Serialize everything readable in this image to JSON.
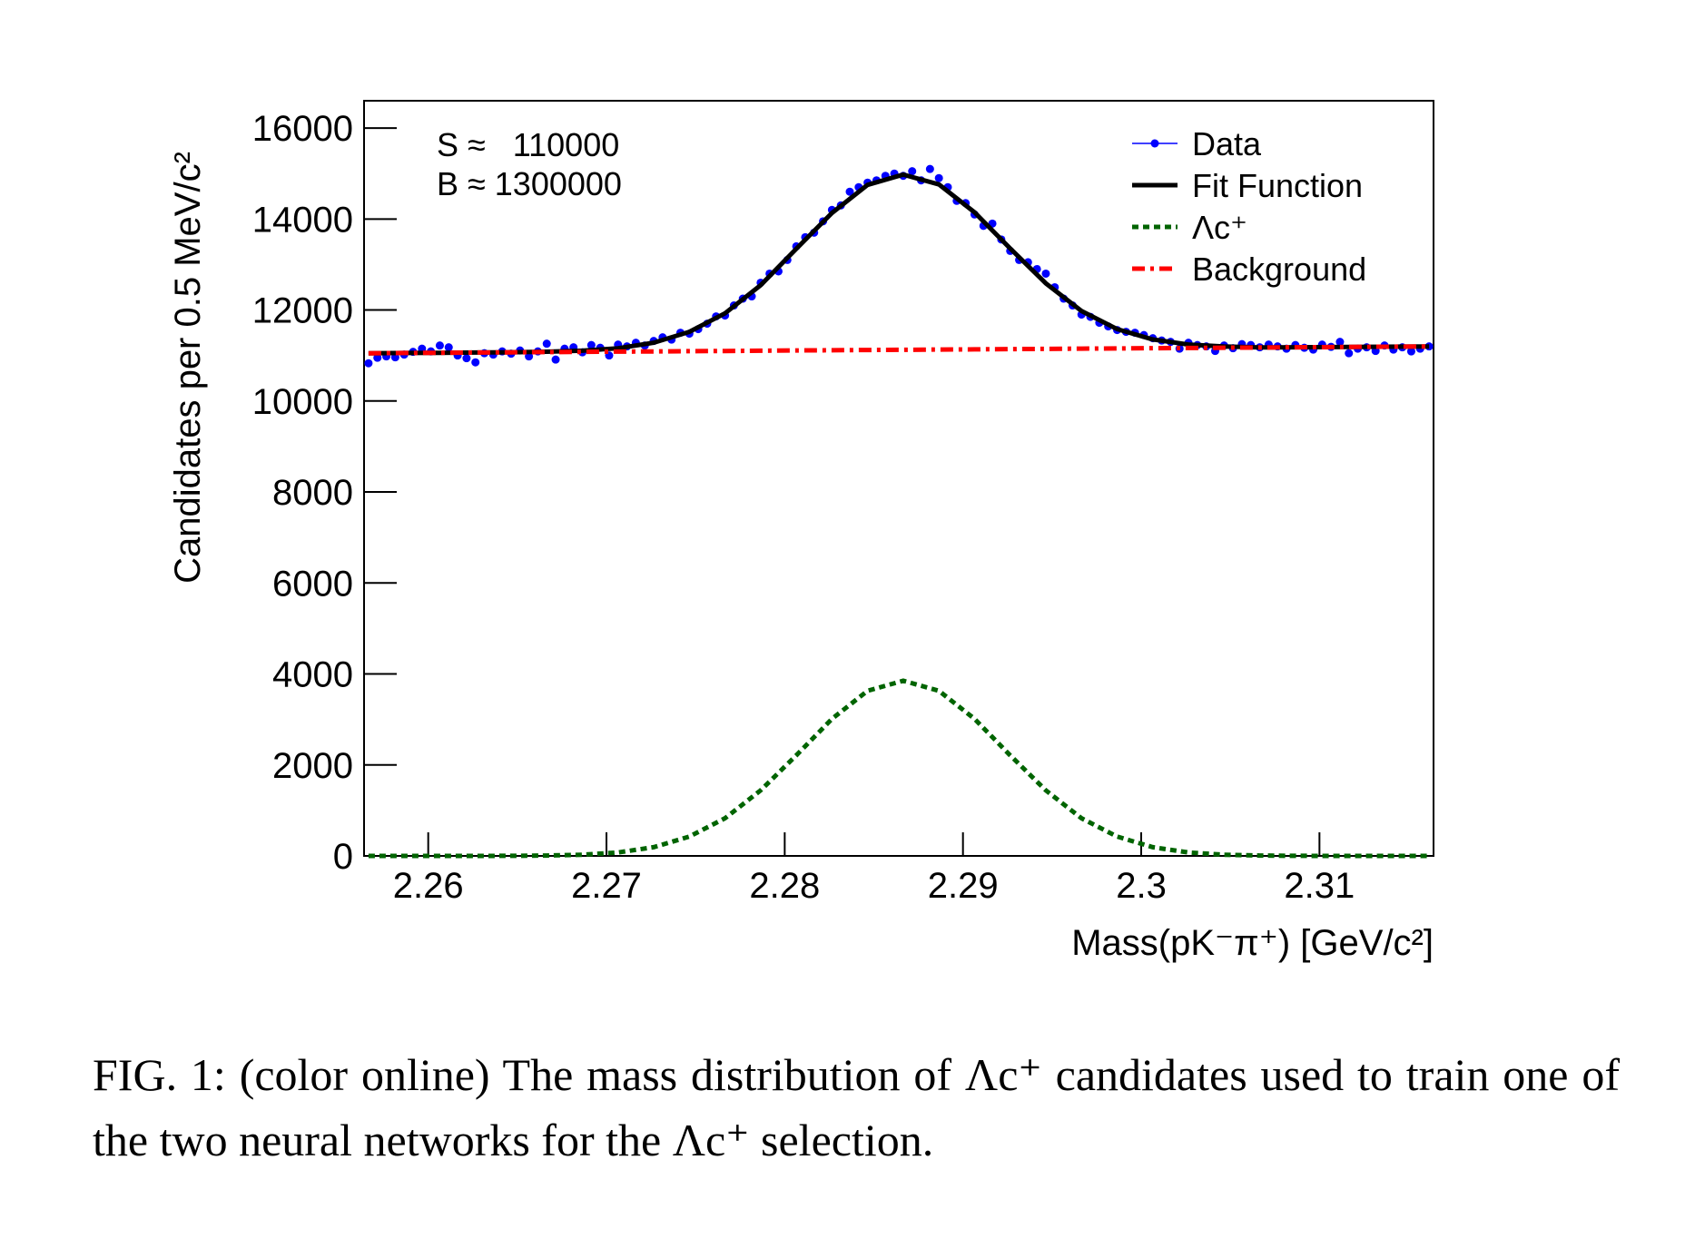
{
  "chart_data": {
    "type": "line",
    "xlabel": "Mass(pK⁻π⁺) [GeV/c²]",
    "ylabel": "Candidates per 0.5 MeV/c²",
    "annotations": [
      "S ≈   110000",
      "B ≈ 1300000"
    ],
    "caption": "FIG. 1: (color online) The mass distribution of Λc⁺ candidates used to train one of the two neural networks for the Λc⁺ selection.",
    "xlim": [
      2.2564,
      2.3164
    ],
    "ylim": [
      0,
      16600
    ],
    "xticks": [
      2.26,
      2.27,
      2.28,
      2.29,
      2.3,
      2.31
    ],
    "yticks": [
      0,
      2000,
      4000,
      6000,
      8000,
      10000,
      12000,
      14000,
      16000
    ],
    "legend": "top-right",
    "series": [
      {
        "name": "Data",
        "color": "#0000ff",
        "style": "markers",
        "x": [
          2.25665,
          2.25715,
          2.25765,
          2.25815,
          2.25865,
          2.25915,
          2.25965,
          2.26015,
          2.26065,
          2.26115,
          2.26165,
          2.26215,
          2.26265,
          2.26315,
          2.26365,
          2.26415,
          2.26465,
          2.26515,
          2.26565,
          2.26615,
          2.26665,
          2.26715,
          2.26765,
          2.26815,
          2.26865,
          2.26915,
          2.26965,
          2.27015,
          2.27065,
          2.27115,
          2.27165,
          2.27215,
          2.27265,
          2.27315,
          2.27365,
          2.27415,
          2.27465,
          2.27515,
          2.27565,
          2.27615,
          2.27665,
          2.27715,
          2.27765,
          2.27815,
          2.27865,
          2.27915,
          2.27965,
          2.28015,
          2.28065,
          2.28115,
          2.28165,
          2.28215,
          2.28265,
          2.28315,
          2.28365,
          2.28415,
          2.28465,
          2.28515,
          2.28565,
          2.28615,
          2.28665,
          2.28715,
          2.28765,
          2.28815,
          2.28865,
          2.28915,
          2.28965,
          2.29015,
          2.29065,
          2.29115,
          2.29165,
          2.29215,
          2.29265,
          2.29315,
          2.29365,
          2.29415,
          2.29465,
          2.29515,
          2.29565,
          2.29615,
          2.29665,
          2.29715,
          2.29765,
          2.29815,
          2.29865,
          2.29915,
          2.29965,
          2.30015,
          2.30065,
          2.30115,
          2.30165,
          2.30215,
          2.30265,
          2.30315,
          2.30365,
          2.30415,
          2.30465,
          2.30515,
          2.30565,
          2.30615,
          2.30665,
          2.30715,
          2.30765,
          2.30815,
          2.30865,
          2.30915,
          2.30965,
          2.31015,
          2.31065,
          2.31115,
          2.31165,
          2.31215,
          2.31265,
          2.31315,
          2.31365,
          2.31415,
          2.31465,
          2.31515,
          2.31565,
          2.31615
        ],
        "values": [
          10830,
          10950,
          10980,
          10960,
          11020,
          11080,
          11150,
          11090,
          11220,
          11180,
          11000,
          10940,
          10850,
          11050,
          11020,
          11090,
          11040,
          11110,
          10980,
          11090,
          11260,
          10910,
          11150,
          11180,
          11070,
          11230,
          11170,
          11000,
          11240,
          11200,
          11280,
          11220,
          11320,
          11400,
          11350,
          11500,
          11480,
          11580,
          11700,
          11860,
          11880,
          12100,
          12250,
          12300,
          12600,
          12800,
          12850,
          13100,
          13400,
          13600,
          13700,
          13950,
          14200,
          14300,
          14600,
          14700,
          14800,
          14850,
          14950,
          15000,
          14950,
          15050,
          14850,
          15100,
          14900,
          14700,
          14400,
          14350,
          14100,
          13850,
          13900,
          13550,
          13300,
          13100,
          13050,
          12900,
          12800,
          12500,
          12250,
          12100,
          11900,
          11850,
          11720,
          11640,
          11560,
          11520,
          11500,
          11450,
          11380,
          11330,
          11300,
          11150,
          11280,
          11230,
          11200,
          11100,
          11220,
          11160,
          11250,
          11230,
          11180,
          11240,
          11200,
          11150,
          11230,
          11170,
          11130,
          11240,
          11190,
          11300,
          11050,
          11150,
          11180,
          11100,
          11220,
          11130,
          11180,
          11090,
          11150,
          11200
        ]
      },
      {
        "name": "Fit Function",
        "color": "#000000",
        "style": "solid",
        "x": [
          2.25665,
          2.25865,
          2.26065,
          2.26265,
          2.26465,
          2.26665,
          2.26865,
          2.27065,
          2.27265,
          2.27465,
          2.27665,
          2.27865,
          2.28065,
          2.28265,
          2.28465,
          2.28665,
          2.28865,
          2.29065,
          2.29265,
          2.29465,
          2.29665,
          2.29865,
          2.30065,
          2.30265,
          2.30465,
          2.30665,
          2.30865,
          2.31065,
          2.31265,
          2.31465,
          2.31615
        ],
        "values": [
          11050,
          11055,
          11060,
          11065,
          11072,
          11083,
          11106,
          11160,
          11281,
          11520,
          11928,
          12546,
          13346,
          14133,
          14750,
          14976,
          14760,
          14148,
          13351,
          12586,
          11979,
          11581,
          11352,
          11241,
          11197,
          11178,
          11181,
          11186,
          11191,
          11196,
          11200
        ]
      },
      {
        "name": "Λc⁺",
        "color": "#006400",
        "style": "dashed",
        "x": [
          2.25665,
          2.25865,
          2.26065,
          2.26265,
          2.26465,
          2.26665,
          2.26865,
          2.27065,
          2.27265,
          2.27465,
          2.27665,
          2.27865,
          2.28065,
          2.28265,
          2.28465,
          2.28665,
          2.28865,
          2.29065,
          2.29265,
          2.29465,
          2.29665,
          2.29865,
          2.30065,
          2.30265,
          2.30465,
          2.30665,
          2.30865,
          2.31065,
          2.31265,
          2.31465,
          2.31615
        ],
        "values": [
          0,
          0,
          0,
          0,
          2,
          8,
          26,
          75,
          191,
          425,
          828,
          1440,
          2210,
          3012,
          3629,
          3850,
          3629,
          3012,
          2210,
          1440,
          828,
          425,
          191,
          75,
          26,
          8,
          2,
          0,
          0,
          0,
          0
        ]
      },
      {
        "name": "Background",
        "color": "#ff0000",
        "style": "dashdot",
        "x": [
          2.25665,
          2.25865,
          2.26065,
          2.26265,
          2.26465,
          2.26665,
          2.26865,
          2.27065,
          2.27265,
          2.27465,
          2.27665,
          2.27865,
          2.28065,
          2.28265,
          2.28465,
          2.28665,
          2.28865,
          2.29065,
          2.29265,
          2.29465,
          2.29665,
          2.29865,
          2.30065,
          2.30265,
          2.30465,
          2.30665,
          2.30865,
          2.31065,
          2.31265,
          2.31465,
          2.31615
        ],
        "values": [
          11050,
          11055,
          11060,
          11065,
          11070,
          11075,
          11080,
          11085,
          11090,
          11095,
          11100,
          11106,
          11111,
          11116,
          11121,
          11126,
          11131,
          11136,
          11141,
          11146,
          11151,
          11156,
          11161,
          11166,
          11171,
          11176,
          11181,
          11186,
          11191,
          11196,
          11200
        ]
      }
    ]
  }
}
